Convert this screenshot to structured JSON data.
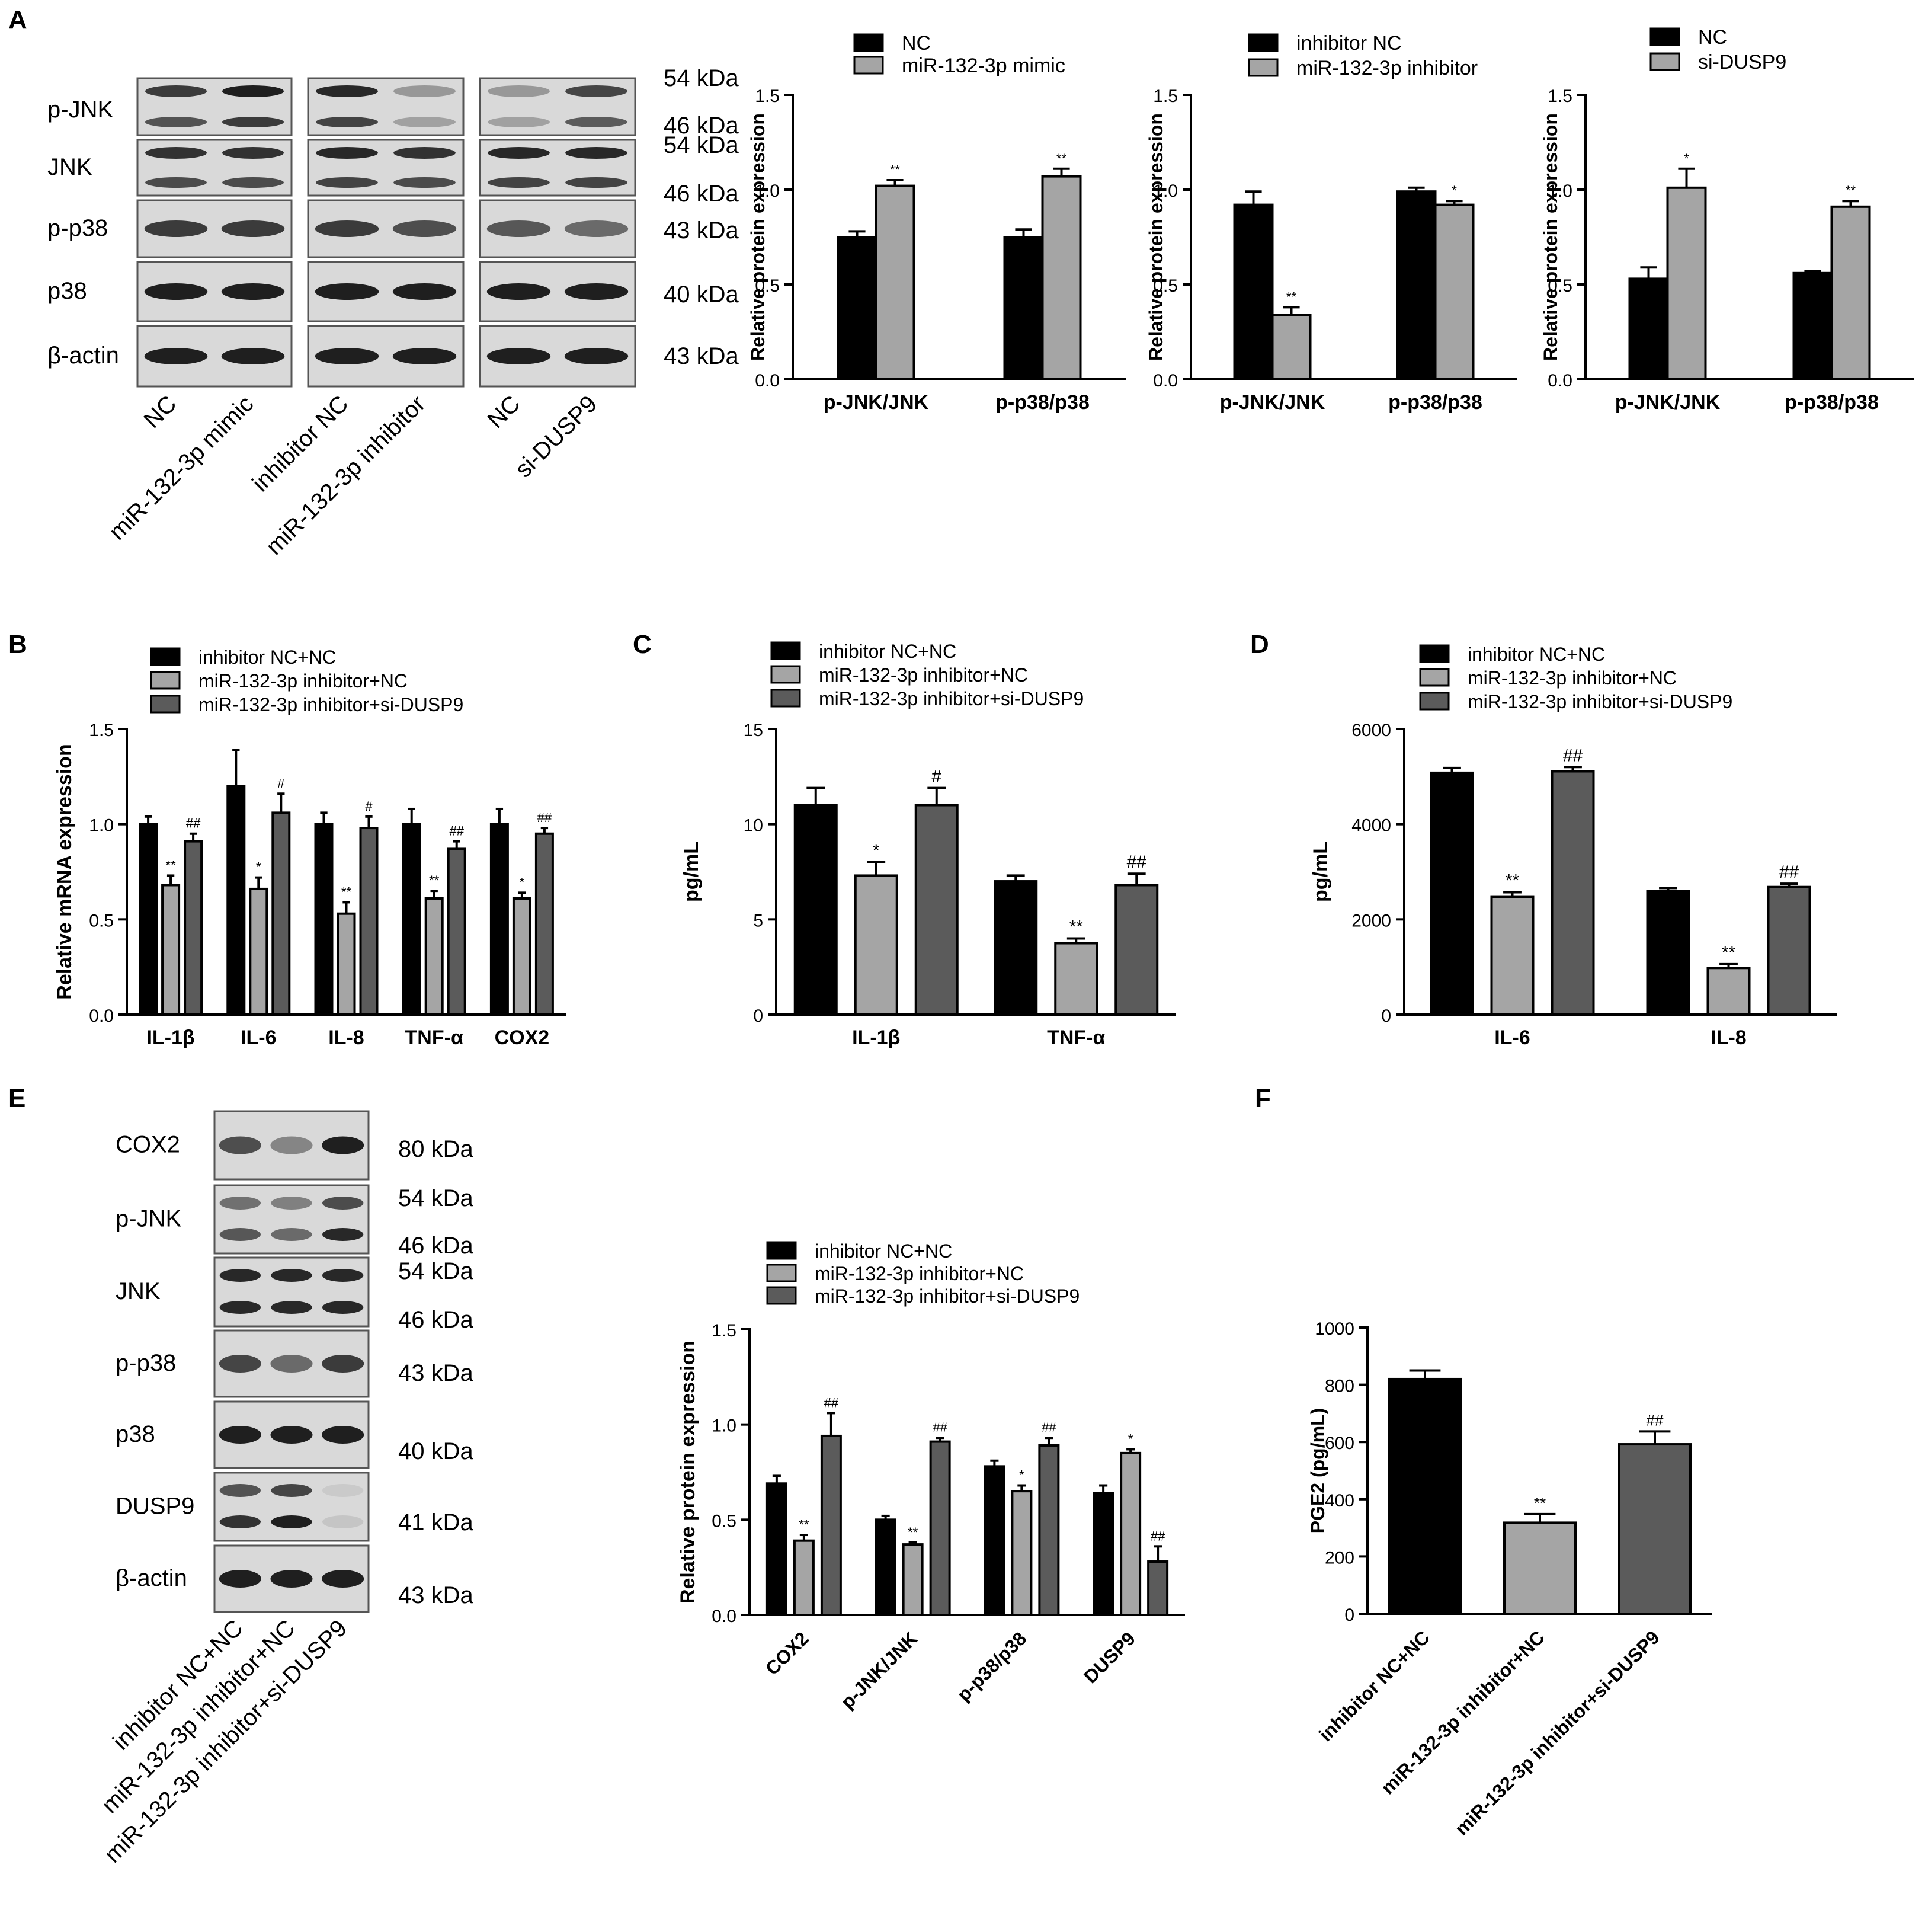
{
  "colors": {
    "black": "#000000",
    "light_gray": "#a5a5a5",
    "dark_gray": "#5b5b5b",
    "blot_bg": "#d9d9d9",
    "band": "#1f1f1f"
  },
  "chart_data": [
    {
      "id": "A1",
      "type": "bar",
      "panel_label": "A",
      "categories": [
        "p-JNK/JNK",
        "p-p38/p38"
      ],
      "ylabel": "Relative protein expression",
      "ylim": [
        0,
        1.5
      ],
      "yticks": [
        "0.0",
        "0.5",
        "1.0",
        "1.5"
      ],
      "series": [
        {
          "name": "NC",
          "values": [
            0.75,
            0.75
          ],
          "errors": [
            0.03,
            0.04
          ],
          "sig": [
            "",
            ""
          ]
        },
        {
          "name": "miR-132-3p mimic",
          "values": [
            1.02,
            1.07
          ],
          "errors": [
            0.03,
            0.04
          ],
          "sig": [
            "**",
            "**"
          ]
        }
      ]
    },
    {
      "id": "A2",
      "type": "bar",
      "panel_label": "",
      "categories": [
        "p-JNK/JNK",
        "p-p38/p38"
      ],
      "ylabel": "Relative protein expression",
      "ylim": [
        0,
        1.5
      ],
      "yticks": [
        "0.0",
        "0.5",
        "1.0",
        "1.5"
      ],
      "series": [
        {
          "name": "inhibitor NC",
          "values": [
            0.92,
            0.99
          ],
          "errors": [
            0.07,
            0.02
          ],
          "sig": [
            "",
            ""
          ]
        },
        {
          "name": "miR-132-3p inhibitor",
          "values": [
            0.34,
            0.92
          ],
          "errors": [
            0.04,
            0.02
          ],
          "sig": [
            "**",
            "*"
          ]
        }
      ]
    },
    {
      "id": "A3",
      "type": "bar",
      "panel_label": "",
      "categories": [
        "p-JNK/JNK",
        "p-p38/p38"
      ],
      "ylabel": "Relative protein expression",
      "ylim": [
        0,
        1.5
      ],
      "yticks": [
        "0.0",
        "0.5",
        "1.0",
        "1.5"
      ],
      "series": [
        {
          "name": "NC",
          "values": [
            0.53,
            0.56
          ],
          "errors": [
            0.06,
            0.01
          ],
          "sig": [
            "",
            ""
          ]
        },
        {
          "name": "si-DUSP9",
          "values": [
            1.01,
            0.91
          ],
          "errors": [
            0.1,
            0.03
          ],
          "sig": [
            "*",
            "**"
          ]
        }
      ]
    },
    {
      "id": "B",
      "type": "bar",
      "panel_label": "B",
      "categories": [
        "IL-1β",
        "IL-6",
        "IL-8",
        "TNF-α",
        "COX2"
      ],
      "ylabel": "Relative mRNA expression",
      "ylim": [
        0,
        1.5
      ],
      "yticks": [
        "0.0",
        "0.5",
        "1.0",
        "1.5"
      ],
      "series": [
        {
          "name": "inhibitor NC+NC",
          "values": [
            1.0,
            1.2,
            1.0,
            1.0,
            1.0
          ],
          "errors": [
            0.04,
            0.19,
            0.06,
            0.08,
            0.08
          ],
          "sig": [
            "",
            "",
            "",
            "",
            ""
          ]
        },
        {
          "name": "miR-132-3p inhibitor+NC",
          "values": [
            0.68,
            0.66,
            0.53,
            0.61,
            0.61
          ],
          "errors": [
            0.05,
            0.06,
            0.06,
            0.04,
            0.03
          ],
          "sig": [
            "**",
            "*",
            "**",
            "**",
            "*"
          ]
        },
        {
          "name": "miR-132-3p inhibitor+si-DUSP9",
          "values": [
            0.91,
            1.06,
            0.98,
            0.87,
            0.95
          ],
          "errors": [
            0.04,
            0.1,
            0.06,
            0.04,
            0.03
          ],
          "sig": [
            "##",
            "#",
            "#",
            "##",
            "##"
          ]
        }
      ]
    },
    {
      "id": "C",
      "type": "bar",
      "panel_label": "C",
      "categories": [
        "IL-1β",
        "TNF-α"
      ],
      "ylabel": "pg/mL",
      "ylim": [
        0,
        15
      ],
      "yticks": [
        "0",
        "5",
        "10",
        "15"
      ],
      "series": [
        {
          "name": "inhibitor NC+NC",
          "values": [
            11.0,
            7.0
          ],
          "errors": [
            0.9,
            0.3
          ],
          "sig": [
            "",
            ""
          ]
        },
        {
          "name": "miR-132-3p inhibitor+NC",
          "values": [
            7.3,
            3.75
          ],
          "errors": [
            0.7,
            0.25
          ],
          "sig": [
            "*",
            "**"
          ]
        },
        {
          "name": "miR-132-3p inhibitor+si-DUSP9",
          "values": [
            11.0,
            6.8
          ],
          "errors": [
            0.9,
            0.6
          ],
          "sig": [
            "#",
            "##"
          ]
        }
      ]
    },
    {
      "id": "D",
      "type": "bar",
      "panel_label": "D",
      "categories": [
        "IL-6",
        "IL-8"
      ],
      "ylabel": "pg/mL",
      "ylim": [
        0,
        6000
      ],
      "yticks": [
        "0",
        "2000",
        "4000",
        "6000"
      ],
      "series": [
        {
          "name": "inhibitor NC+NC",
          "values": [
            5080,
            2600
          ],
          "errors": [
            100,
            60
          ],
          "sig": [
            "",
            ""
          ]
        },
        {
          "name": "miR-132-3p inhibitor+NC",
          "values": [
            2470,
            980
          ],
          "errors": [
            100,
            80
          ],
          "sig": [
            "**",
            "**"
          ]
        },
        {
          "name": "miR-132-3p inhibitor+si-DUSP9",
          "values": [
            5110,
            2680
          ],
          "errors": [
            90,
            70
          ],
          "sig": [
            "##",
            "##"
          ]
        }
      ]
    },
    {
      "id": "E",
      "type": "bar",
      "panel_label": "",
      "categories": [
        "COX2",
        "p-JNK/JNK",
        "p-p38/p38",
        "DUSP9"
      ],
      "ylabel": "Relative protein expression",
      "ylim": [
        0,
        1.5
      ],
      "yticks": [
        "0.0",
        "0.5",
        "1.0",
        "1.5"
      ],
      "series": [
        {
          "name": "inhibitor NC+NC",
          "values": [
            0.69,
            0.5,
            0.78,
            0.64
          ],
          "errors": [
            0.04,
            0.02,
            0.03,
            0.04
          ],
          "sig": [
            "",
            "",
            "",
            ""
          ]
        },
        {
          "name": "miR-132-3p inhibitor+NC",
          "values": [
            0.39,
            0.37,
            0.65,
            0.85
          ],
          "errors": [
            0.03,
            0.01,
            0.03,
            0.02
          ],
          "sig": [
            "**",
            "**",
            "*",
            "*"
          ]
        },
        {
          "name": "miR-132-3p inhibitor+si-DUSP9",
          "values": [
            0.94,
            0.91,
            0.89,
            0.28
          ],
          "errors": [
            0.12,
            0.02,
            0.04,
            0.08
          ],
          "sig": [
            "##",
            "##",
            "##",
            "##"
          ]
        }
      ]
    },
    {
      "id": "F",
      "type": "bar",
      "panel_label": "F",
      "categories": [
        "inhibitor NC+NC",
        "miR-132-3p inhibitor+NC",
        "miR-132-3p inhibitor+si-DUSP9"
      ],
      "ylabel": "PGE2 (pg/mL)",
      "ylim": [
        0,
        1000
      ],
      "yticks": [
        "0",
        "200",
        "400",
        "600",
        "800",
        "1000"
      ],
      "values": [
        820,
        318,
        592
      ],
      "errors": [
        30,
        30,
        45
      ],
      "sig": [
        "",
        "**",
        "##"
      ]
    }
  ],
  "blots": [
    {
      "id": "A",
      "panel_label": "A",
      "rows": [
        {
          "label": "p-JNK",
          "kda": [
            "54 kDa",
            "46 kDa"
          ]
        },
        {
          "label": "JNK",
          "kda": [
            "54 kDa",
            "46 kDa"
          ]
        },
        {
          "label": "p-p38",
          "kda": [
            "43 kDa"
          ]
        },
        {
          "label": "p38",
          "kda": [
            "40 kDa"
          ]
        },
        {
          "label": "β-actin",
          "kda": [
            "43 kDa"
          ]
        }
      ],
      "lanes": [
        "NC",
        "miR-132-3p mimic",
        "inhibitor NC",
        "miR-132-3p inhibitor",
        "NC",
        "si-DUSP9"
      ]
    },
    {
      "id": "E",
      "panel_label": "E",
      "rows": [
        {
          "label": "COX2",
          "kda": [
            "80 kDa"
          ]
        },
        {
          "label": "p-JNK",
          "kda": [
            "54 kDa",
            "46 kDa"
          ]
        },
        {
          "label": "JNK",
          "kda": [
            "54 kDa",
            "46 kDa"
          ]
        },
        {
          "label": "p-p38",
          "kda": [
            "43 kDa"
          ]
        },
        {
          "label": "p38",
          "kda": [
            "40 kDa"
          ]
        },
        {
          "label": "DUSP9",
          "kda": [
            "41 kDa"
          ]
        },
        {
          "label": "β-actin",
          "kda": [
            "43 kDa"
          ]
        }
      ],
      "lanes": [
        "inhibitor NC+NC",
        "miR-132-3p inhibitor+NC",
        "miR-132-3p inhibitor+si-DUSP9"
      ]
    }
  ]
}
